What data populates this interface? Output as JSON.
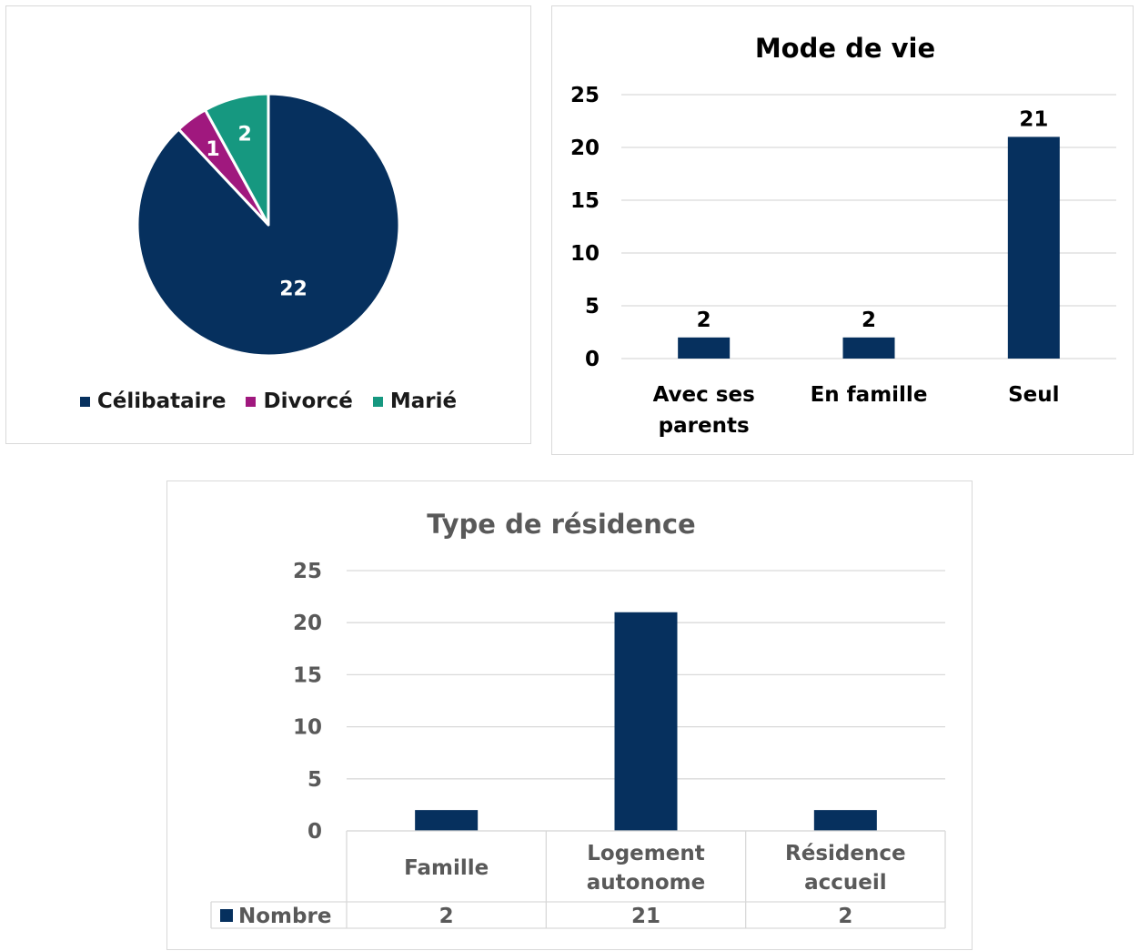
{
  "colors": {
    "navy": "#06305e",
    "magenta": "#a0187e",
    "teal": "#169880"
  },
  "chart_data": [
    {
      "type": "pie",
      "title": "",
      "slices": [
        {
          "label": "Célibataire",
          "value": 22,
          "color": "#06305e"
        },
        {
          "label": "Divorcé",
          "value": 1,
          "color": "#a0187e"
        },
        {
          "label": "Marié",
          "value": 2,
          "color": "#169880"
        }
      ],
      "legend_position": "bottom",
      "data_labels": true
    },
    {
      "type": "bar",
      "title": "Mode de vie",
      "categories": [
        "Avec ses parents",
        "En famille",
        "Seul"
      ],
      "values": [
        2,
        2,
        21
      ],
      "ylim": [
        0,
        25
      ],
      "yticks": [
        "0",
        "5",
        "10",
        "15",
        "20",
        "25"
      ],
      "grid": true,
      "data_labels": true,
      "color": "#06305e"
    },
    {
      "type": "bar",
      "title": "Type de résidence",
      "categories": [
        "Famille",
        "Logement autonome",
        "Résidence accueil"
      ],
      "series": [
        {
          "name": "Nombre",
          "values": [
            2,
            21,
            2
          ]
        }
      ],
      "ylim": [
        0,
        25
      ],
      "yticks": [
        "0",
        "5",
        "10",
        "15",
        "20",
        "25"
      ],
      "grid": true,
      "data_table": true,
      "color": "#06305e"
    }
  ]
}
